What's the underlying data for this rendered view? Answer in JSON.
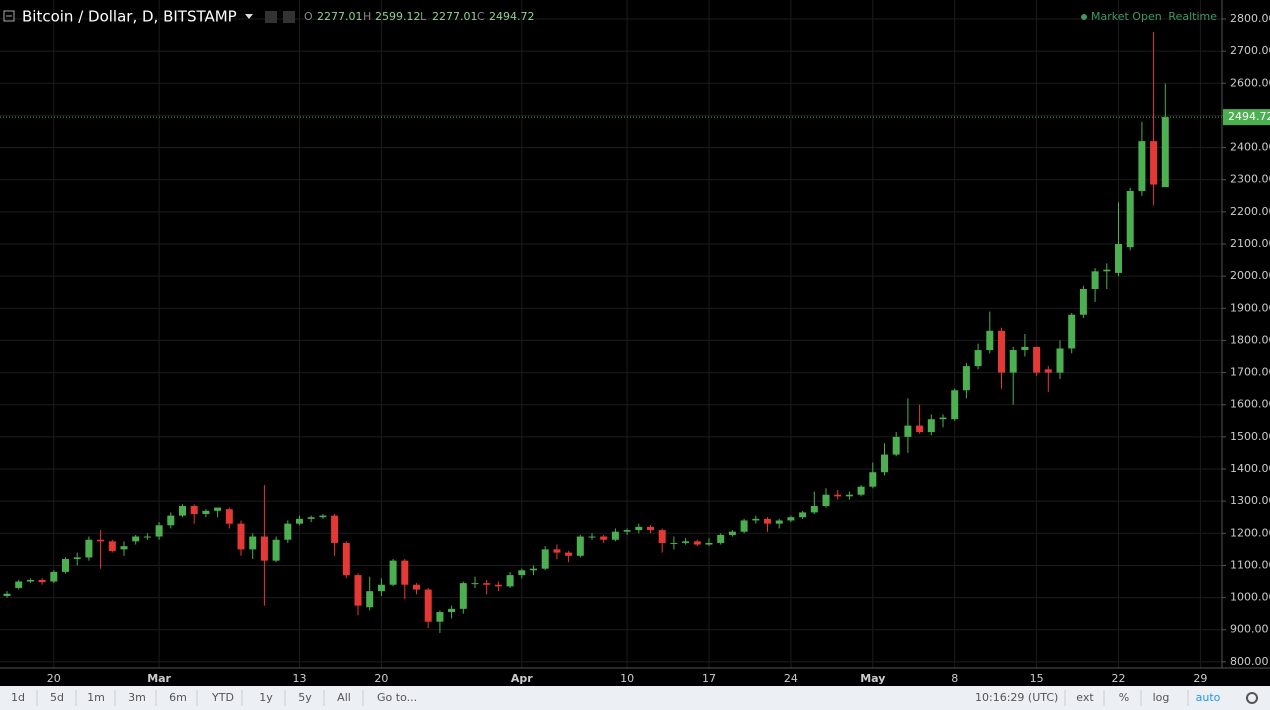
{
  "header": {
    "symbol": "Bitcoin / Dollar, D, BITSTAMP",
    "ohlc_labels": [
      "O",
      "H",
      "L",
      "C"
    ]
  },
  "status": {
    "market": "Market Open",
    "feed": "Realtime"
  },
  "toolbar": {
    "ranges": [
      "1d",
      "5d",
      "1m",
      "3m",
      "6m",
      "YTD",
      "1y",
      "5y",
      "All"
    ],
    "goto": "Go to...",
    "time": "10:16:29 (UTC)",
    "options": [
      "ext",
      "%",
      "log",
      "auto"
    ]
  },
  "chart_data": {
    "type": "candlestick",
    "categories": [
      null,
      null,
      null,
      null,
      "20",
      null,
      null,
      null,
      null,
      null,
      null,
      null,
      null,
      "Mar",
      null,
      null,
      null,
      null,
      null,
      null,
      null,
      null,
      null,
      null,
      null,
      "13",
      null,
      null,
      null,
      null,
      null,
      null,
      "20",
      null,
      null,
      null,
      null,
      null,
      null,
      null,
      null,
      null,
      null,
      null,
      "Apr",
      null,
      null,
      null,
      null,
      null,
      null,
      null,
      null,
      "10",
      null,
      null,
      null,
      null,
      null,
      null,
      "17",
      null,
      null,
      null,
      null,
      null,
      null,
      "24",
      null,
      null,
      null,
      null,
      null,
      null,
      "May",
      null,
      null,
      null,
      null,
      null,
      null,
      "8",
      null,
      null,
      null,
      null,
      null,
      null,
      "15",
      null,
      null,
      null,
      null,
      null,
      null,
      "22",
      null,
      null,
      null,
      null,
      null,
      null,
      "29",
      null
    ],
    "open": [
      1005,
      1030,
      1050,
      1055,
      1050,
      1080,
      1120,
      1125,
      1180,
      1175,
      1150,
      1175,
      1190,
      1190,
      1225,
      1255,
      1285,
      1260,
      1270,
      1275,
      1230,
      1150,
      1190,
      1115,
      1180,
      1230,
      1245,
      1250,
      1255,
      1170,
      1070,
      970,
      1020,
      1040,
      1115,
      1040,
      1025,
      925,
      955,
      965,
      1045,
      1045,
      1040,
      1035,
      1070,
      1085,
      1090,
      1150,
      1140,
      1130,
      1190,
      1190,
      1180,
      1205,
      1210,
      1220,
      1210,
      1170,
      1170,
      1175,
      1165,
      1170,
      1195,
      1205,
      1240,
      1245,
      1230,
      1240,
      1250,
      1265,
      1285,
      1320,
      1315,
      1320,
      1345,
      1390,
      1445,
      1500,
      1535,
      1515,
      1555,
      1555,
      1645,
      1720,
      1770,
      1830,
      1700,
      1770,
      1780,
      1710,
      1700,
      1775,
      1880,
      1960,
      2015,
      2010,
      2090,
      2265,
      2420,
      2277.01,
      null,
      null,
      null,
      null
    ],
    "high": [
      1020,
      1055,
      1060,
      1060,
      1085,
      1125,
      1140,
      1190,
      1210,
      1180,
      1175,
      1195,
      1200,
      1235,
      1265,
      1290,
      1290,
      1275,
      1280,
      1280,
      1240,
      1200,
      1350,
      1190,
      1240,
      1255,
      1255,
      1260,
      1260,
      1175,
      1075,
      1065,
      1060,
      1120,
      1120,
      1045,
      1030,
      960,
      975,
      1050,
      1065,
      1055,
      1050,
      1080,
      1090,
      1100,
      1160,
      1165,
      1145,
      1195,
      1200,
      1195,
      1215,
      1215,
      1230,
      1225,
      1215,
      1190,
      1185,
      1180,
      1185,
      1200,
      1210,
      1245,
      1255,
      1250,
      1245,
      1255,
      1270,
      1330,
      1340,
      1335,
      1330,
      1350,
      1420,
      1480,
      1515,
      1620,
      1600,
      1570,
      1570,
      1650,
      1730,
      1790,
      1890,
      1840,
      1780,
      1820,
      1780,
      1720,
      1800,
      1885,
      1970,
      2025,
      2040,
      2230,
      2275,
      2480,
      2760,
      2599.12,
      null,
      null,
      null,
      null
    ],
    "low": [
      1000,
      1025,
      1045,
      1040,
      1045,
      1075,
      1100,
      1115,
      1090,
      1140,
      1130,
      1165,
      1180,
      1180,
      1215,
      1250,
      1230,
      1250,
      1250,
      1215,
      1130,
      1120,
      975,
      1110,
      1170,
      1225,
      1235,
      1245,
      1130,
      1060,
      945,
      960,
      1005,
      1035,
      995,
      1010,
      905,
      890,
      935,
      950,
      1030,
      1010,
      1020,
      1030,
      1060,
      1070,
      1085,
      1120,
      1110,
      1125,
      1180,
      1170,
      1175,
      1195,
      1200,
      1200,
      1140,
      1150,
      1165,
      1160,
      1160,
      1165,
      1190,
      1200,
      1230,
      1205,
      1215,
      1235,
      1245,
      1260,
      1280,
      1305,
      1305,
      1315,
      1340,
      1380,
      1440,
      1450,
      1510,
      1505,
      1530,
      1550,
      1620,
      1710,
      1760,
      1650,
      1600,
      1750,
      1690,
      1640,
      1680,
      1760,
      1870,
      1920,
      1960,
      2000,
      2080,
      2250,
      2220,
      2277.01,
      null,
      null,
      null,
      null
    ],
    "close": [
      1012,
      1050,
      1055,
      1048,
      1080,
      1120,
      1125,
      1180,
      1175,
      1145,
      1160,
      1190,
      1190,
      1225,
      1255,
      1285,
      1260,
      1270,
      1280,
      1230,
      1150,
      1190,
      1115,
      1180,
      1230,
      1245,
      1250,
      1255,
      1170,
      1070,
      975,
      1020,
      1040,
      1115,
      1040,
      1025,
      925,
      955,
      965,
      1045,
      1045,
      1040,
      1035,
      1070,
      1085,
      1090,
      1150,
      1140,
      1130,
      1190,
      1190,
      1180,
      1205,
      1210,
      1220,
      1210,
      1170,
      1170,
      1175,
      1165,
      1170,
      1195,
      1205,
      1240,
      1245,
      1230,
      1240,
      1250,
      1265,
      1285,
      1320,
      1315,
      1320,
      1345,
      1390,
      1445,
      1500,
      1535,
      1515,
      1555,
      1560,
      1645,
      1720,
      1770,
      1830,
      1700,
      1770,
      1780,
      1700,
      1700,
      1775,
      1880,
      1960,
      2015,
      2020,
      2100,
      2265,
      2420,
      2285,
      2494.72,
      null,
      null,
      null,
      null
    ],
    "up_color": "#4caf50",
    "down_color": "#e53935",
    "ylim": [
      781,
      2859
    ],
    "yticks": [
      {
        "value": 800,
        "label": "800.00"
      },
      {
        "value": 900,
        "label": "900.00"
      },
      {
        "value": 1000,
        "label": "1000.00"
      },
      {
        "value": 1100,
        "label": "1100.00"
      },
      {
        "value": 1200,
        "label": "1200.00"
      },
      {
        "value": 1300,
        "label": "1300.00"
      },
      {
        "value": 1400,
        "label": "1400.00"
      },
      {
        "value": 1500,
        "label": "1500.00"
      },
      {
        "value": 1600,
        "label": "1600.00"
      },
      {
        "value": 1700,
        "label": "1700.00"
      },
      {
        "value": 1800,
        "label": "1800.00"
      },
      {
        "value": 1900,
        "label": "1900.00"
      },
      {
        "value": 2000,
        "label": "2000.00"
      },
      {
        "value": 2100,
        "label": "2100.00"
      },
      {
        "value": 2200,
        "label": "2200.00"
      },
      {
        "value": 2300,
        "label": "2300.00"
      },
      {
        "value": 2400,
        "label": "2400.00"
      },
      {
        "value": 2500,
        "label": "2500.00"
      },
      {
        "value": 2600,
        "label": "2600.00"
      },
      {
        "value": 2700,
        "label": "2700.00"
      },
      {
        "value": 2800,
        "label": "2800.00"
      }
    ],
    "grid": true,
    "last_price_line": true
  }
}
